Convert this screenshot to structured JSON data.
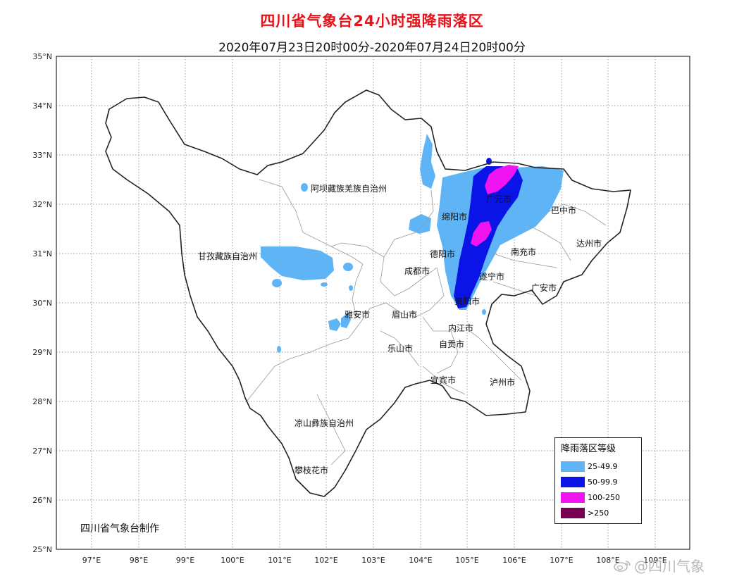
{
  "title": "四川省气象台24小时强降雨落区",
  "subtitle": "2020年07月23日20时00分-2020年07月24日20时00分",
  "axes": {
    "lat_labels": [
      "35°N",
      "34°N",
      "33°N",
      "32°N",
      "31°N",
      "30°N",
      "29°N",
      "28°N",
      "27°N",
      "26°N",
      "25°N"
    ],
    "lon_labels": [
      "97°E",
      "98°E",
      "99°E",
      "100°E",
      "101°E",
      "102°E",
      "103°E",
      "104°E",
      "105°E",
      "106°E",
      "107°E",
      "108°E",
      "109°E"
    ]
  },
  "regions": {
    "aba": "阿坝藏族羌族自治州",
    "ganzi": "甘孜藏族自治州",
    "liangshan": "凉山彝族自治州",
    "panzhihua": "攀枝花市",
    "yaan": "雅安市",
    "meishan": "眉山市",
    "leshan": "乐山市",
    "chengdu": "成都市",
    "deyang": "德阳市",
    "mianyang": "绵阳市",
    "guangyuan": "广元市",
    "bazhong": "巴中市",
    "dazhou": "达州市",
    "nanchong": "南充市",
    "guangan": "广安市",
    "suining": "遂宁市",
    "ziyang": "资阳市",
    "neijiang": "内江市",
    "zigong": "自贡市",
    "yibin": "宜宾市",
    "luzhou": "泸州市"
  },
  "legend": {
    "title": "降雨落区等级",
    "items": [
      {
        "label": "25-49.9",
        "color": "#5fb4f5"
      },
      {
        "label": "50-99.9",
        "color": "#0a14e6"
      },
      {
        "label": "100-250",
        "color": "#f014f0"
      },
      {
        "label": ">250",
        "color": "#780050"
      }
    ]
  },
  "credit": "四川省气象台制作",
  "watermark": "@四川气象"
}
